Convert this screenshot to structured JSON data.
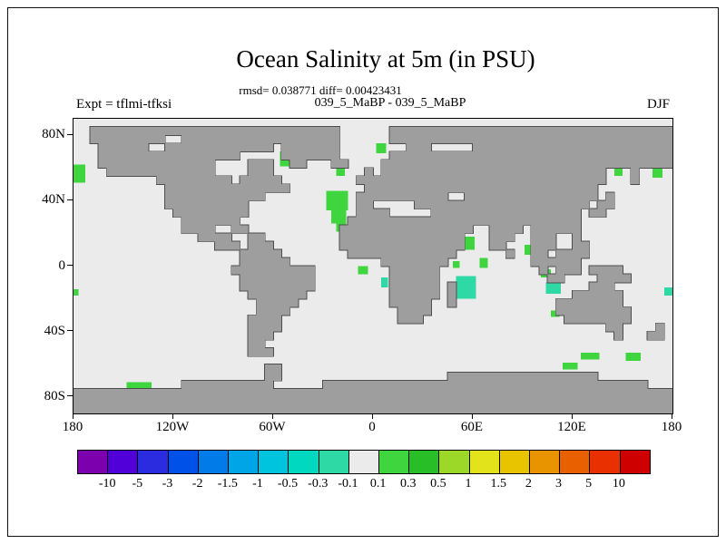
{
  "figure": {
    "title": "Ocean Salinity at 5m (in PSU)",
    "stats": "rmsd= 0.038771 diff= 0.00423431",
    "runs": "039_5_MaBP - 039_5_MaBP",
    "experiment": "Expt = tflmi-tfksi",
    "season": "DJF"
  },
  "chart_data": {
    "type": "heatmap",
    "title": "Ocean Salinity at 5m (in PSU)",
    "subtitle_stats": {
      "rmsd": 0.038771,
      "diff": 0.00423431
    },
    "comparison": "039_5_MaBP - 039_5_MaBP",
    "experiment": "Expt = tflmi-tfksi",
    "season": "DJF",
    "units": "PSU",
    "projection": "equirectangular",
    "lon_range": [
      -180,
      180
    ],
    "lat_range": [
      -90,
      90
    ],
    "grid_deg": 5,
    "x_ticks": [
      {
        "label": "180",
        "lon": -180
      },
      {
        "label": "120W",
        "lon": -120
      },
      {
        "label": "60W",
        "lon": -60
      },
      {
        "label": "0",
        "lon": 0
      },
      {
        "label": "60E",
        "lon": 60
      },
      {
        "label": "120E",
        "lon": 120
      },
      {
        "label": "180",
        "lon": 180
      }
    ],
    "y_ticks": [
      {
        "label": "80N",
        "lat": 80
      },
      {
        "label": "40N",
        "lat": 40
      },
      {
        "label": "0",
        "lat": 0
      },
      {
        "label": "40S",
        "lat": -40
      },
      {
        "label": "80S",
        "lat": -80
      }
    ],
    "land_color": "#9e9e9e",
    "land_outline_color": "#4d4d4d",
    "ocean_color": "#ebebeb",
    "colorbar": {
      "boundaries": [
        "-10",
        "-5",
        "-3",
        "-2",
        "-1.5",
        "-1",
        "-0.5",
        "-0.3",
        "-0.1",
        "0.1",
        "0.3",
        "0.5",
        "1",
        "1.5",
        "2",
        "3",
        "5",
        "10"
      ],
      "colors": [
        "#7d00af",
        "#5100d9",
        "#2b2be0",
        "#0051e8",
        "#007be8",
        "#00a5e8",
        "#00c4de",
        "#00d9c0",
        "#2fd9a6",
        "#ebebeb",
        "#3fd53f",
        "#27be27",
        "#9bd827",
        "#e3e31b",
        "#e8c400",
        "#e89400",
        "#e86000",
        "#e83000",
        "#ce0000"
      ]
    },
    "anomalies": [
      {
        "lon": -180,
        "lat": 62,
        "w": 7,
        "h": 11,
        "level": "0.1 to 0.3",
        "color_index": 10
      },
      {
        "lon": -56,
        "lat": 70,
        "w": 6,
        "h": 9,
        "level": "0.1 to 0.3",
        "color_index": 10
      },
      {
        "lon": -22,
        "lat": 60,
        "w": 5,
        "h": 5,
        "level": "0.1 to 0.3",
        "color_index": 10
      },
      {
        "lon": -28,
        "lat": 46,
        "w": 13,
        "h": 12,
        "level": "0.1 to 0.3",
        "color_index": 10
      },
      {
        "lon": -25,
        "lat": 34,
        "w": 9,
        "h": 8,
        "level": "0.1 to 0.3",
        "color_index": 10
      },
      {
        "lon": -22,
        "lat": 26,
        "w": 6,
        "h": 5,
        "level": "0.1 to 0.3",
        "color_index": 10
      },
      {
        "lon": 2,
        "lat": 75,
        "w": 6,
        "h": 6,
        "level": "0.1 to 0.3",
        "color_index": 10
      },
      {
        "lon": -9,
        "lat": 0,
        "w": 6,
        "h": 5,
        "level": "0.1 to 0.3",
        "color_index": 10
      },
      {
        "lon": 5,
        "lat": -7,
        "w": 4,
        "h": 6,
        "level": "-0.3 to -0.1",
        "color_index": 8
      },
      {
        "lon": 55,
        "lat": 18,
        "w": 6,
        "h": 8,
        "level": "0.1 to 0.3",
        "color_index": 10
      },
      {
        "lon": 64,
        "lat": 5,
        "w": 5,
        "h": 6,
        "level": "0.1 to 0.3",
        "color_index": 10
      },
      {
        "lon": 48,
        "lat": 3,
        "w": 4,
        "h": 4,
        "level": "0.1 to 0.3",
        "color_index": 10
      },
      {
        "lon": 50,
        "lat": -6,
        "w": 12,
        "h": 14,
        "level": "-0.3 to -0.1",
        "color_index": 8
      },
      {
        "lon": 91,
        "lat": 13,
        "w": 4,
        "h": 6,
        "level": "0.1 to 0.3",
        "color_index": 10
      },
      {
        "lon": 101,
        "lat": -2,
        "w": 6,
        "h": 5,
        "level": "0.1 to 0.3",
        "color_index": 10
      },
      {
        "lon": 104,
        "lat": -10,
        "w": 9,
        "h": 7,
        "level": "-0.3 to -0.1",
        "color_index": 8
      },
      {
        "lon": 107,
        "lat": -27,
        "w": 5,
        "h": 4,
        "level": "0.1 to 0.3",
        "color_index": 10
      },
      {
        "lon": 125,
        "lat": -53,
        "w": 11,
        "h": 4,
        "level": "0.1 to 0.3",
        "color_index": 10
      },
      {
        "lon": 152,
        "lat": -53,
        "w": 9,
        "h": 5,
        "level": "0.1 to 0.3",
        "color_index": 10
      },
      {
        "lon": 114,
        "lat": -59,
        "w": 9,
        "h": 4,
        "level": "0.1 to 0.3",
        "color_index": 10
      },
      {
        "lon": -148,
        "lat": -71,
        "w": 15,
        "h": 4,
        "level": "0.1 to 0.3",
        "color_index": 10
      },
      {
        "lon": 145,
        "lat": 60,
        "w": 5,
        "h": 5,
        "level": "0.1 to 0.3",
        "color_index": 10
      },
      {
        "lon": 168,
        "lat": 60,
        "w": 6,
        "h": 6,
        "level": "0.1 to 0.3",
        "color_index": 10
      },
      {
        "lon": 175,
        "lat": -13,
        "w": 5,
        "h": 5,
        "level": "-0.3 to -0.1",
        "color_index": 8
      },
      {
        "lon": -180,
        "lat": -14,
        "w": 3,
        "h": 4,
        "level": "0.1 to 0.3",
        "color_index": 10
      }
    ],
    "land_mask_5deg": [
      "........................................................................",
      "..##############################......##################################",
      "..#########..###################......##################################",
      "...######..#############.#######........###.....########################",
      "...#################.....#######......##################################",
      "...##############....###..##...##....###################################",
      "....#############....###...........#.###########################...#....",
      "..........#########.#####.........##############################...#....",
      "...........###############.........############################.........",
      "...........############...........###########..################.#.......",
      "...........##########.............##.....#####################.##.......",
      "............#########.............####.....##################.##........",
      ".............#######.............############################...........",
      ".............####..##...........################..####.######...........",
      "...............####..##.........###############...###..###..#...........",
      ".................###.###........###############...##...###..##..........",
      "....................#####........#############......#..##.####..........",
      "....................######...........########..........######...........",
      "...................##########.........######............#.###.####......",
      "....................#########.........######.............##....####.....",
      "....................#########.........######.#................###.......",
      ".....................#######..........######.#..............######......",
      "......................#####...........#####..#............########......",
      "......................####.............####...............#########.....",
      ".....................####..............###.................########.....",
      ".....................####.......................................##....#.",
      ".....................###.........................................#...##.",
      ".....................##.................................................",
      ".....................###................................................",
      "........................................................................",
      ".......................##..............................................",
      ".......................##....................##################.........",
      ".............###########......#######################################...",
      "########################################################################",
      "########################################################################",
      "########################################################################"
    ]
  }
}
